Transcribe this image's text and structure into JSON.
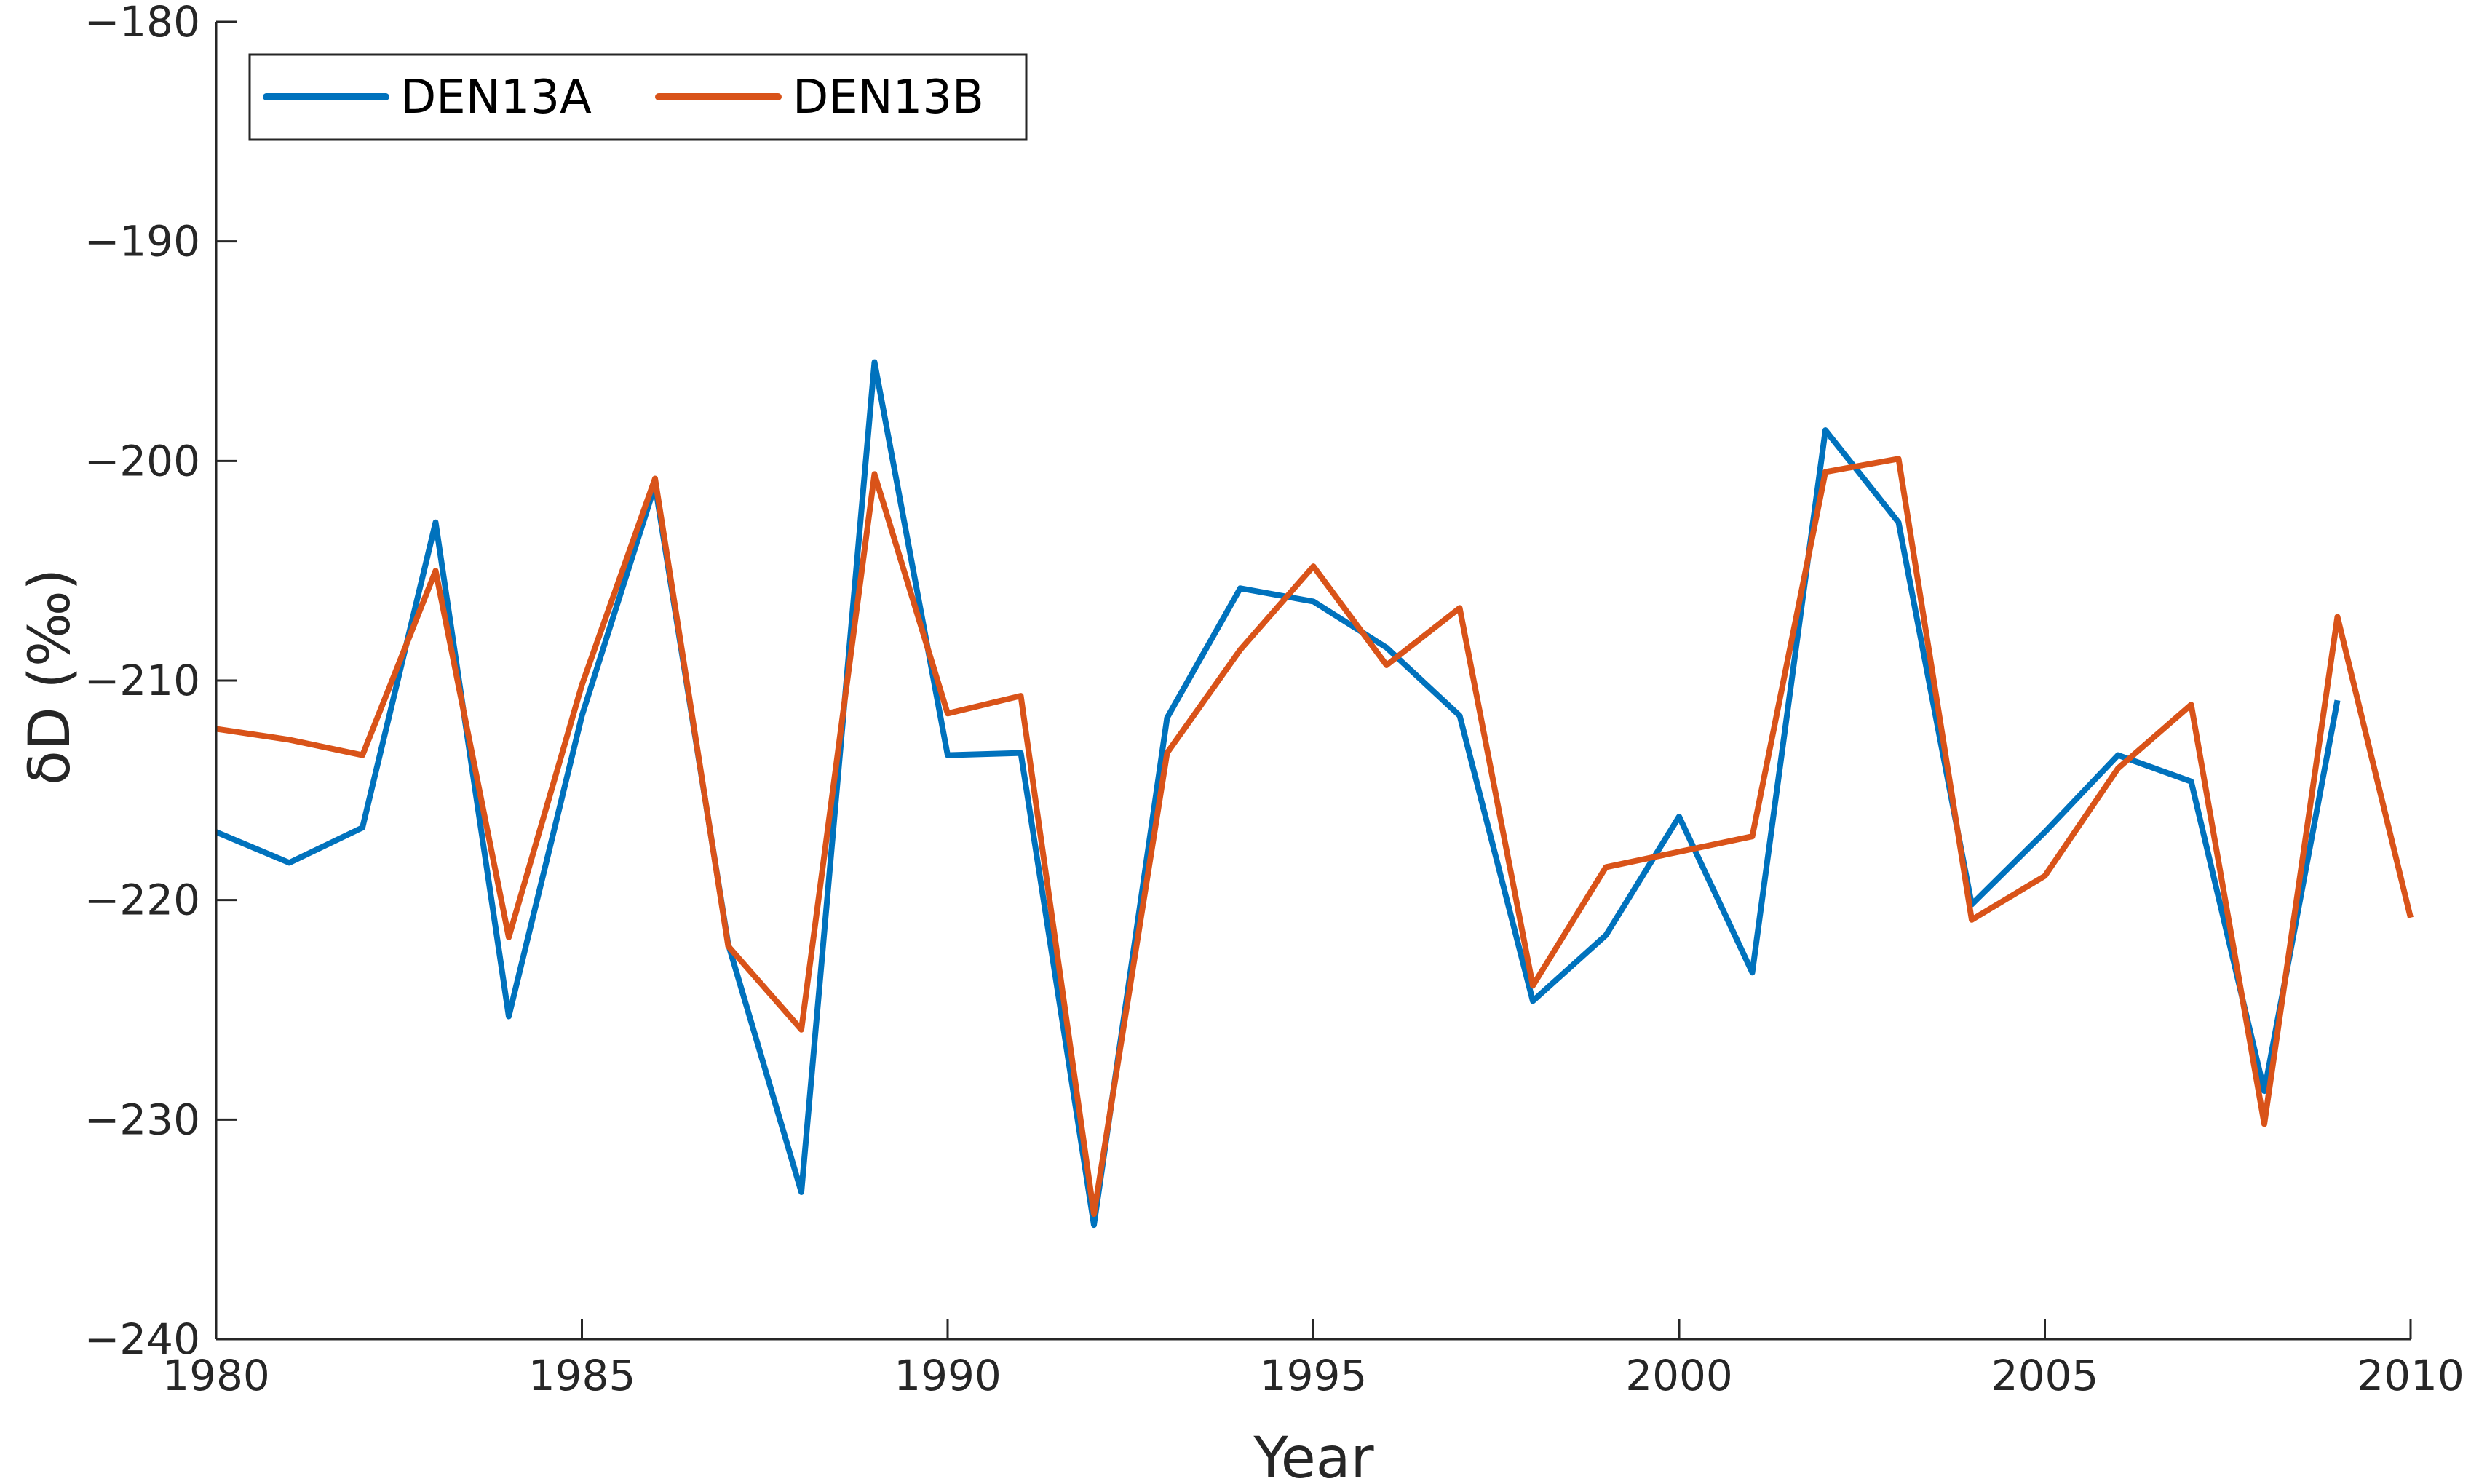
{
  "chart_data": {
    "type": "line",
    "title": "",
    "xlabel": "Year",
    "ylabel": "δD (‰)",
    "xlim": [
      1980,
      2010
    ],
    "ylim": [
      -240,
      -180
    ],
    "xticks": [
      1980,
      1985,
      1990,
      1995,
      2000,
      2005,
      2010
    ],
    "yticks": [
      -180,
      -190,
      -200,
      -210,
      -220,
      -230,
      -240
    ],
    "xtick_labels": [
      "1980",
      "1985",
      "1990",
      "1995",
      "2000",
      "2005",
      "2010"
    ],
    "ytick_labels": [
      "−180",
      "−190",
      "−200",
      "−210",
      "−220",
      "−230",
      "−240"
    ],
    "grid": false,
    "legend_position": "top-left",
    "series": [
      {
        "name": "DEN13A",
        "color": "#0072BD",
        "x": [
          1980,
          1981,
          1982,
          1983,
          1984,
          1985,
          1986,
          1987,
          1988,
          1989,
          1990,
          1991,
          1992,
          1993,
          1994,
          1995,
          1996,
          1997,
          1998,
          1999,
          2000,
          2001,
          2002,
          2003,
          2004,
          2005,
          2006,
          2007,
          2008,
          2009
        ],
        "y": [
          -216.9,
          -218.3,
          -216.7,
          -202.8,
          -225.3,
          -211.6,
          -201.1,
          -222.0,
          -233.3,
          -195.5,
          -213.4,
          -213.3,
          -234.8,
          -211.7,
          -205.8,
          -206.4,
          -208.5,
          -211.6,
          -224.6,
          -221.6,
          -216.2,
          -223.3,
          -198.6,
          -202.8,
          -220.2,
          -216.9,
          -213.4,
          -214.6,
          -228.7,
          -210.9
        ]
      },
      {
        "name": "DEN13B",
        "color": "#D95319",
        "x": [
          1980,
          1981,
          1982,
          1983,
          1984,
          1985,
          1986,
          1987,
          1988,
          1989,
          1990,
          1991,
          1992,
          1993,
          1994,
          1995,
          1996,
          1997,
          1998,
          1999,
          2000,
          2001,
          2002,
          2003,
          2004,
          2005,
          2006,
          2007,
          2008,
          2009,
          2010
        ],
        "y": [
          -212.2,
          -212.7,
          -213.4,
          -205.0,
          -221.7,
          -210.2,
          -200.8,
          -222.1,
          -225.9,
          -200.6,
          -211.5,
          -210.7,
          -234.3,
          -213.3,
          -208.6,
          -204.8,
          -209.3,
          -206.7,
          -223.9,
          -218.5,
          -217.8,
          -217.1,
          -200.5,
          -199.9,
          -220.9,
          -218.9,
          -214.0,
          -211.1,
          -230.2,
          -207.1,
          -220.8
        ]
      }
    ]
  }
}
